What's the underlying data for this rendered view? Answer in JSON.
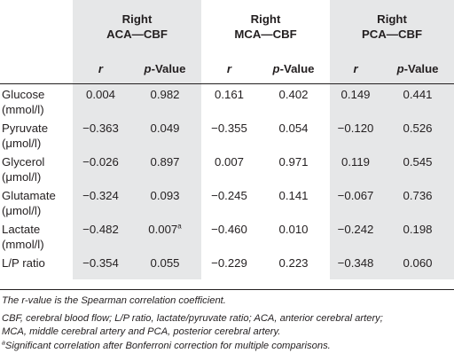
{
  "headers": {
    "groups": [
      {
        "line1": "Right",
        "line2": "ACA—CBF"
      },
      {
        "line1": "Right",
        "line2": "MCA—CBF"
      },
      {
        "line1": "Right",
        "line2": "PCA—CBF"
      }
    ],
    "r_label": "r",
    "p_label_italic": "p",
    "p_label_rest": "-Value"
  },
  "rows": [
    {
      "label": "Glucose",
      "unit": "(mmol/l)",
      "aca_r": "0.004",
      "aca_p": "0.982",
      "mca_r": "0.161",
      "mca_p": "0.402",
      "pca_r": "0.149",
      "pca_p": "0.441"
    },
    {
      "label": "Pyruvate",
      "unit": "(μmol/l)",
      "aca_r": "−0.363",
      "aca_p": "0.049",
      "mca_r": "−0.355",
      "mca_p": "0.054",
      "pca_r": "−0.120",
      "pca_p": "0.526"
    },
    {
      "label": "Glycerol",
      "unit": "(μmol/l)",
      "aca_r": "−0.026",
      "aca_p": "0.897",
      "mca_r": "0.007",
      "mca_p": "0.971",
      "pca_r": "0.119",
      "pca_p": "0.545"
    },
    {
      "label": "Glutamate",
      "unit": "(μmol/l)",
      "aca_r": "−0.324",
      "aca_p": "0.093",
      "mca_r": "−0.245",
      "mca_p": "0.141",
      "pca_r": "−0.067",
      "pca_p": "0.736"
    },
    {
      "label": "Lactate",
      "unit": "(mmol/l)",
      "aca_r": "−0.482",
      "aca_p": "0.007",
      "aca_p_mark": "a",
      "mca_r": "−0.460",
      "mca_p": "0.010",
      "pca_r": "−0.242",
      "pca_p": "0.198"
    },
    {
      "label": "L/P ratio",
      "unit": "",
      "aca_r": "−0.354",
      "aca_p": "0.055",
      "mca_r": "−0.229",
      "mca_p": "0.223",
      "pca_r": "−0.348",
      "pca_p": "0.060"
    }
  ],
  "notes": {
    "note1": "The r-value is the Spearman correlation coefficient.",
    "note2_line1": "CBF, cerebral blood flow; L/P ratio, lactate/pyruvate ratio; ACA, anterior cerebral artery;",
    "note2_line2": "MCA, middle cerebral artery and PCA, posterior cerebral artery.",
    "footnote_mark": "a",
    "footnote_text": "Significant correlation after Bonferroni correction for multiple comparisons."
  },
  "colors": {
    "grey_band": "#e6e7e8",
    "text": "#231f20"
  }
}
